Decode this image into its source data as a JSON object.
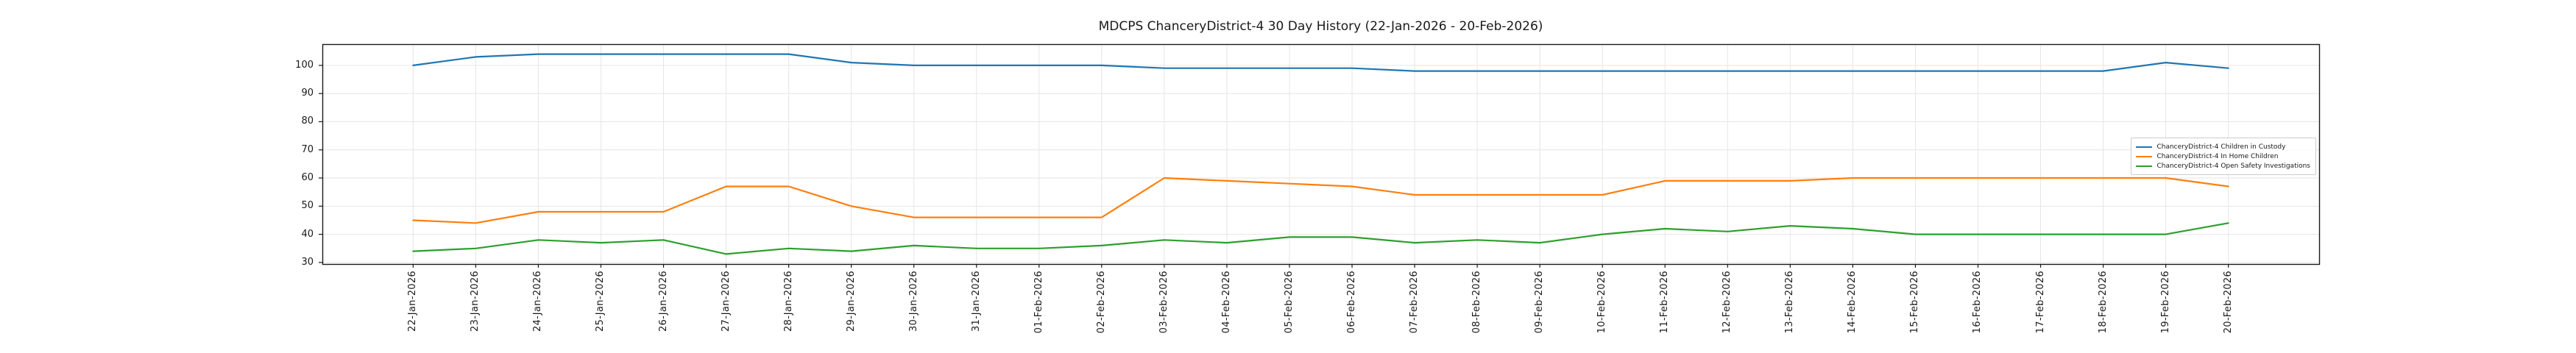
{
  "chart_data": {
    "type": "line",
    "title": "MDCPS ChanceryDistrict-4 30 Day History (22-Jan-2026 - 20-Feb-2026)",
    "x": [
      "22-Jan-2026",
      "23-Jan-2026",
      "24-Jan-2026",
      "25-Jan-2026",
      "26-Jan-2026",
      "27-Jan-2026",
      "28-Jan-2026",
      "29-Jan-2026",
      "30-Jan-2026",
      "31-Jan-2026",
      "01-Feb-2026",
      "02-Feb-2026",
      "03-Feb-2026",
      "04-Feb-2026",
      "05-Feb-2026",
      "06-Feb-2026",
      "07-Feb-2026",
      "08-Feb-2026",
      "09-Feb-2026",
      "10-Feb-2026",
      "11-Feb-2026",
      "12-Feb-2026",
      "13-Feb-2026",
      "14-Feb-2026",
      "15-Feb-2026",
      "16-Feb-2026",
      "17-Feb-2026",
      "18-Feb-2026",
      "19-Feb-2026",
      "20-Feb-2026"
    ],
    "series": [
      {
        "name": "ChanceryDistrict-4 Children in Custody",
        "color": "#1f77b4",
        "values": [
          100,
          103,
          104,
          104,
          104,
          104,
          104,
          101,
          100,
          100,
          100,
          100,
          99,
          99,
          99,
          99,
          98,
          98,
          98,
          98,
          98,
          98,
          98,
          98,
          98,
          98,
          98,
          98,
          101,
          99
        ]
      },
      {
        "name": "ChanceryDistrict-4 In Home Children",
        "color": "#ff7f0e",
        "values": [
          45,
          44,
          48,
          48,
          48,
          57,
          57,
          50,
          46,
          46,
          46,
          46,
          60,
          59,
          58,
          57,
          54,
          54,
          54,
          54,
          59,
          59,
          59,
          60,
          60,
          60,
          60,
          60,
          60,
          57
        ]
      },
      {
        "name": "ChanceryDistrict-4 Open Safety Investigations",
        "color": "#2ca02c",
        "values": [
          34,
          35,
          38,
          37,
          38,
          33,
          35,
          34,
          36,
          35,
          35,
          36,
          38,
          37,
          39,
          39,
          37,
          38,
          37,
          40,
          42,
          41,
          43,
          42,
          40,
          40,
          40,
          40,
          40,
          44
        ]
      }
    ],
    "yticks": [
      30,
      40,
      50,
      60,
      70,
      80,
      90,
      100
    ],
    "ylim": [
      29.45,
      107.55
    ],
    "grid": true,
    "legend_position": "center right",
    "colors": {
      "grid": "#e6e6e6",
      "spine": "#1a1a1a",
      "text": "#1a1a1a",
      "background": "#ffffff"
    }
  }
}
